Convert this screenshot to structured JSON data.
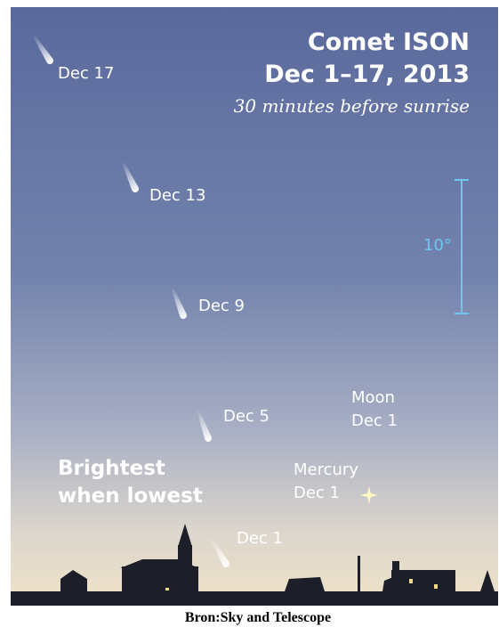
{
  "header": {
    "title_lines": [
      "Comet ISON",
      "Dec 1–17, 2013"
    ],
    "subtitle": "30 minutes before sunrise"
  },
  "scale": {
    "label": "10°"
  },
  "comets": [
    {
      "label": "Dec 17"
    },
    {
      "label": "Dec 13"
    },
    {
      "label": "Dec 9"
    },
    {
      "label": "Dec 5"
    },
    {
      "label": "Dec 1"
    }
  ],
  "moon": {
    "lines": [
      "Moon",
      "Dec 1"
    ]
  },
  "mercury": {
    "lines": [
      "Mercury",
      "Dec 1"
    ]
  },
  "note": {
    "lines": [
      "Brightest",
      "when lowest"
    ]
  },
  "caption": "Bron:Sky and Telescope"
}
